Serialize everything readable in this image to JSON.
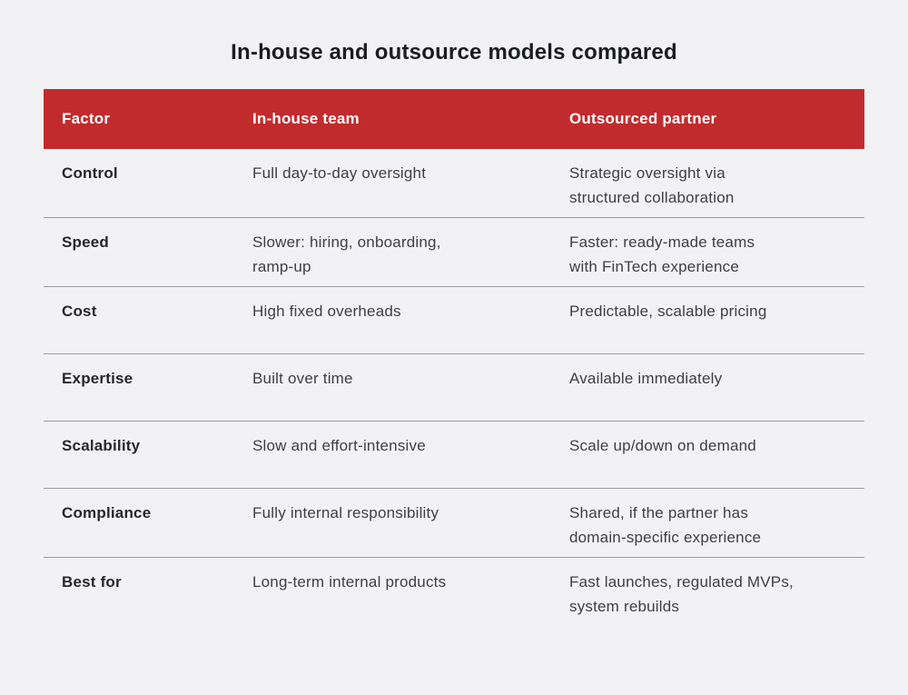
{
  "colors": {
    "header_bg": "#c22b2d",
    "header_text": "#ffffff",
    "page_bg": "#f2f2f4",
    "row_divider": "#9c9da1",
    "factor_text": "#26272a",
    "cell_text": "#3e3f43",
    "title_text": "#1b1c1e"
  },
  "chart_data": {
    "type": "table",
    "title": "In-house and outsource models compared",
    "columns": [
      "Factor",
      "In-house team",
      "Outsourced partner"
    ],
    "rows": [
      {
        "factor": "Control",
        "inhouse": "Full day-to-day oversight",
        "outsourced": "Strategic oversight via\nstructured collaboration"
      },
      {
        "factor": "Speed",
        "inhouse": "Slower: hiring, onboarding,\nramp-up",
        "outsourced": "Faster: ready-made teams\nwith FinTech experience"
      },
      {
        "factor": "Cost",
        "inhouse": "High fixed overheads",
        "outsourced": "Predictable, scalable pricing"
      },
      {
        "factor": "Expertise",
        "inhouse": "Built over time",
        "outsourced": "Available immediately"
      },
      {
        "factor": "Scalability",
        "inhouse": "Slow and effort-intensive",
        "outsourced": "Scale up/down on demand"
      },
      {
        "factor": "Compliance",
        "inhouse": "Fully internal responsibility",
        "outsourced": "Shared, if the partner has\ndomain-specific experience"
      },
      {
        "factor": "Best for",
        "inhouse": "Long-term internal products",
        "outsourced": "Fast launches, regulated MVPs,\nsystem rebuilds"
      }
    ]
  }
}
